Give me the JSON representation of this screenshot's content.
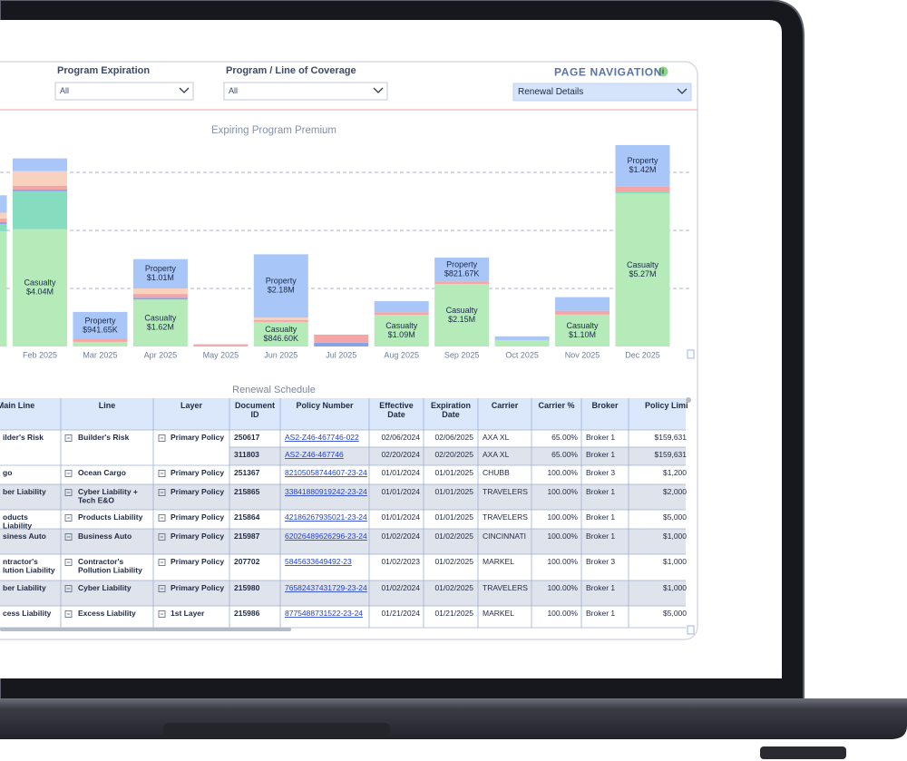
{
  "filters": [
    {
      "label": "Program Expiration",
      "value": "All"
    },
    {
      "label": "Program / Line of Coverage",
      "value": "All"
    }
  ],
  "navigation": {
    "label": "PAGE NAVIGATION",
    "value": "Renewal Details"
  },
  "chart_data": {
    "type": "bar",
    "stacked": true,
    "title": "Expiring Program Premium",
    "categories": [
      null,
      "Feb 2025",
      "Mar 2025",
      "Apr 2025",
      "May 2025",
      "Jun 2025",
      "Jul 2025",
      "Aug 2025",
      "Sep 2025",
      "Oct 2025",
      "Nov 2025",
      "Dec 2025"
    ],
    "series": [
      {
        "name": "Casualty",
        "color": "#b4ebb8",
        "values": [
          3970000,
          4040000,
          160000,
          1620000,
          null,
          846600,
          null,
          1090000,
          2150000,
          220000,
          1100000,
          5270000
        ],
        "value_labels": [
          null,
          "$4.04M",
          null,
          "$1.62M",
          null,
          "$846.60K",
          null,
          "$1.09M",
          "$2.15M",
          null,
          "$1.10M",
          "$5.27M"
        ]
      },
      {
        "color": "#86dcbe",
        "values": [
          250000,
          1310000,
          null,
          null,
          null,
          null,
          null,
          null,
          null,
          null,
          null,
          60000
        ]
      },
      {
        "color": "#86a3e8",
        "values": [
          60000,
          60000,
          null,
          60000,
          null,
          null,
          130000,
          null,
          null,
          null,
          null,
          null
        ]
      },
      {
        "color": "#f4a5a5",
        "values": [
          130000,
          130000,
          90000,
          130000,
          60000,
          60000,
          280000,
          90000,
          90000,
          null,
          130000,
          190000
        ]
      },
      {
        "color": "#f8d2bf",
        "values": [
          200000,
          500000,
          null,
          190000,
          30000,
          90000,
          null,
          null,
          null,
          null,
          null,
          null
        ]
      },
      {
        "name": "Property",
        "color": "#a9c6f8",
        "values": [
          600000,
          440000,
          941650,
          1010000,
          null,
          2180000,
          null,
          380000,
          821670,
          130000,
          470000,
          1420000
        ],
        "value_labels": [
          null,
          null,
          "$941.65K",
          "$1.01M",
          null,
          "$2.18M",
          null,
          null,
          "$821.67K",
          null,
          null,
          "$1.42M"
        ]
      }
    ],
    "ylim": [
      0,
      7000000
    ],
    "yticks": [
      2000000,
      4000000,
      6000000
    ],
    "grid": true
  },
  "table": {
    "title": "Renewal Schedule",
    "columns": [
      "Main Line",
      "Line",
      "Layer",
      "Document ID",
      "Policy Number",
      "Effective Date",
      "Expiration Date",
      "Carrier",
      "Carrier %",
      "Broker",
      "Policy Limi"
    ],
    "rows": [
      [
        "ilder's Risk",
        "Builder's Risk",
        "Primary Policy",
        "250617",
        "AS2-Z46-467746-022",
        "02/06/2024",
        "02/06/2025",
        "AXA XL",
        "65.00%",
        "Broker 1",
        "$159,631"
      ],
      [
        null,
        null,
        null,
        "311803",
        "AS2-Z46-467746",
        "02/20/2024",
        "02/20/2025",
        "AXA XL",
        "65.00%",
        "Broker 1",
        "$159,631"
      ],
      [
        "go",
        "Ocean Cargo",
        "Primary Policy",
        "251367",
        "82105058744607-23-24",
        "01/01/2024",
        "01/01/2025",
        "CHUBB",
        "100.00%",
        "Broker 3",
        "$1,200"
      ],
      [
        "ber Liability",
        "Cyber Liability + Tech E&O",
        "Primary Policy",
        "215865",
        "33841880919242-23-24",
        "01/01/2024",
        "01/01/2025",
        "TRAVELERS",
        "100.00%",
        "Broker 1",
        "$2,000"
      ],
      [
        "oducts Liability",
        "Products Liability",
        "Primary Policy",
        "215864",
        "42186267935021-23-24",
        "01/01/2024",
        "01/01/2025",
        "TRAVELERS",
        "100.00%",
        "Broker 1",
        "$5,000"
      ],
      [
        "siness Auto",
        "Business Auto",
        "Primary Policy",
        "215987",
        "62026489626296-23-24",
        "01/02/2024",
        "01/02/2025",
        "CINCINNATI",
        "100.00%",
        "Broker 1",
        "$1,000"
      ],
      [
        "ntractor's\nlution Liability",
        "Contractor's Pollution Liability",
        "Primary Policy",
        "207702",
        "5845633649492-23",
        "01/02/2023",
        "01/02/2025",
        "MARKEL",
        "100.00%",
        "Broker 3",
        "$1,000"
      ],
      [
        "ber Liability",
        "Cyber Liability",
        "Primary Policy",
        "215980",
        "76582437431729-23-24",
        "01/02/2024",
        "01/02/2025",
        "TRAVELERS",
        "100.00%",
        "Broker 1",
        "$1,000"
      ],
      [
        "cess Liability",
        "Excess Liability",
        "1st Layer",
        "215986",
        "8775488731522-23-24",
        "01/21/2024",
        "01/21/2025",
        "MARKEL",
        "100.00%",
        "Broker 1",
        "$5,000"
      ]
    ]
  }
}
